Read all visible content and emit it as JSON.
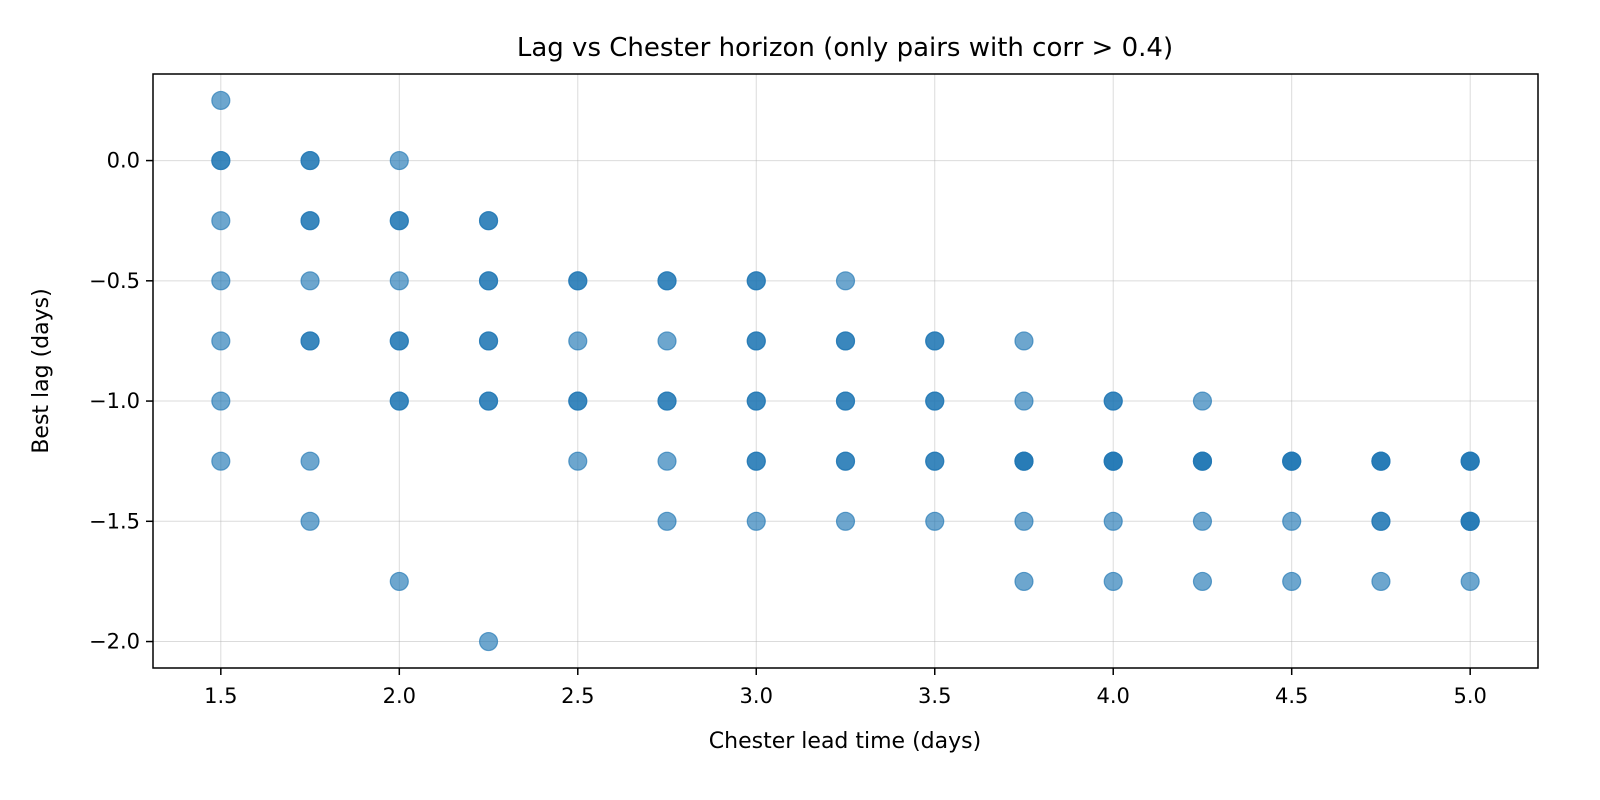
{
  "chart_data": {
    "type": "scatter",
    "title": "Lag vs Chester horizon (only pairs with corr > 0.4)",
    "xlabel": "Chester lead time (days)",
    "ylabel": "Best lag (days)",
    "xlim": [
      1.31,
      5.19
    ],
    "ylim": [
      -2.11,
      0.36
    ],
    "xticks": [
      1.5,
      2.0,
      2.5,
      3.0,
      3.5,
      4.0,
      4.5,
      5.0
    ],
    "xtick_labels": [
      "1.5",
      "2.0",
      "2.5",
      "3.0",
      "3.5",
      "4.0",
      "4.5",
      "5.0"
    ],
    "yticks": [
      0.0,
      -0.5,
      -1.0,
      -1.5,
      -2.0
    ],
    "ytick_labels": [
      "0.0",
      "−0.5",
      "−1.0",
      "−1.5",
      "−2.0"
    ],
    "grid": true,
    "marker_color": "#1f77b4",
    "marker_alpha": 0.65,
    "points": [
      [
        1.5,
        0.25
      ],
      [
        1.5,
        0.0
      ],
      [
        1.5,
        0.0
      ],
      [
        1.5,
        -0.25
      ],
      [
        1.5,
        -0.5
      ],
      [
        1.5,
        -0.75
      ],
      [
        1.5,
        -1.0
      ],
      [
        1.5,
        -1.25
      ],
      [
        1.75,
        0.0
      ],
      [
        1.75,
        0.0
      ],
      [
        1.75,
        -0.25
      ],
      [
        1.75,
        -0.25
      ],
      [
        1.75,
        -0.5
      ],
      [
        1.75,
        -0.75
      ],
      [
        1.75,
        -0.75
      ],
      [
        1.75,
        -1.25
      ],
      [
        1.75,
        -1.5
      ],
      [
        2.0,
        0.0
      ],
      [
        2.0,
        -0.25
      ],
      [
        2.0,
        -0.25
      ],
      [
        2.0,
        -0.5
      ],
      [
        2.0,
        -0.75
      ],
      [
        2.0,
        -0.75
      ],
      [
        2.0,
        -1.0
      ],
      [
        2.0,
        -1.0
      ],
      [
        2.0,
        -1.75
      ],
      [
        2.25,
        -0.25
      ],
      [
        2.25,
        -0.25
      ],
      [
        2.25,
        -0.5
      ],
      [
        2.25,
        -0.5
      ],
      [
        2.25,
        -0.75
      ],
      [
        2.25,
        -0.75
      ],
      [
        2.25,
        -1.0
      ],
      [
        2.25,
        -1.0
      ],
      [
        2.25,
        -2.0
      ],
      [
        2.5,
        -0.5
      ],
      [
        2.5,
        -0.5
      ],
      [
        2.5,
        -0.75
      ],
      [
        2.5,
        -1.0
      ],
      [
        2.5,
        -1.0
      ],
      [
        2.5,
        -1.25
      ],
      [
        2.75,
        -0.5
      ],
      [
        2.75,
        -0.5
      ],
      [
        2.75,
        -0.75
      ],
      [
        2.75,
        -1.0
      ],
      [
        2.75,
        -1.0
      ],
      [
        2.75,
        -1.25
      ],
      [
        2.75,
        -1.5
      ],
      [
        3.0,
        -0.5
      ],
      [
        3.0,
        -0.5
      ],
      [
        3.0,
        -0.75
      ],
      [
        3.0,
        -0.75
      ],
      [
        3.0,
        -1.0
      ],
      [
        3.0,
        -1.0
      ],
      [
        3.0,
        -1.25
      ],
      [
        3.0,
        -1.25
      ],
      [
        3.0,
        -1.5
      ],
      [
        3.25,
        -0.5
      ],
      [
        3.25,
        -0.75
      ],
      [
        3.25,
        -0.75
      ],
      [
        3.25,
        -1.0
      ],
      [
        3.25,
        -1.0
      ],
      [
        3.25,
        -1.25
      ],
      [
        3.25,
        -1.25
      ],
      [
        3.25,
        -1.5
      ],
      [
        3.5,
        -0.75
      ],
      [
        3.5,
        -0.75
      ],
      [
        3.5,
        -1.0
      ],
      [
        3.5,
        -1.0
      ],
      [
        3.5,
        -1.25
      ],
      [
        3.5,
        -1.25
      ],
      [
        3.5,
        -1.5
      ],
      [
        3.75,
        -0.75
      ],
      [
        3.75,
        -1.0
      ],
      [
        3.75,
        -1.25
      ],
      [
        3.75,
        -1.25
      ],
      [
        3.75,
        -1.25
      ],
      [
        3.75,
        -1.5
      ],
      [
        3.75,
        -1.75
      ],
      [
        4.0,
        -1.0
      ],
      [
        4.0,
        -1.0
      ],
      [
        4.0,
        -1.25
      ],
      [
        4.0,
        -1.25
      ],
      [
        4.0,
        -1.25
      ],
      [
        4.0,
        -1.5
      ],
      [
        4.0,
        -1.75
      ],
      [
        4.25,
        -1.0
      ],
      [
        4.25,
        -1.25
      ],
      [
        4.25,
        -1.25
      ],
      [
        4.25,
        -1.25
      ],
      [
        4.25,
        -1.5
      ],
      [
        4.25,
        -1.75
      ],
      [
        4.5,
        -1.25
      ],
      [
        4.5,
        -1.25
      ],
      [
        4.5,
        -1.25
      ],
      [
        4.5,
        -1.5
      ],
      [
        4.5,
        -1.75
      ],
      [
        4.75,
        -1.25
      ],
      [
        4.75,
        -1.25
      ],
      [
        4.75,
        -1.25
      ],
      [
        4.75,
        -1.5
      ],
      [
        4.75,
        -1.5
      ],
      [
        4.75,
        -1.75
      ],
      [
        5.0,
        -1.25
      ],
      [
        5.0,
        -1.25
      ],
      [
        5.0,
        -1.25
      ],
      [
        5.0,
        -1.5
      ],
      [
        5.0,
        -1.5
      ],
      [
        5.0,
        -1.5
      ],
      [
        5.0,
        -1.75
      ]
    ]
  }
}
